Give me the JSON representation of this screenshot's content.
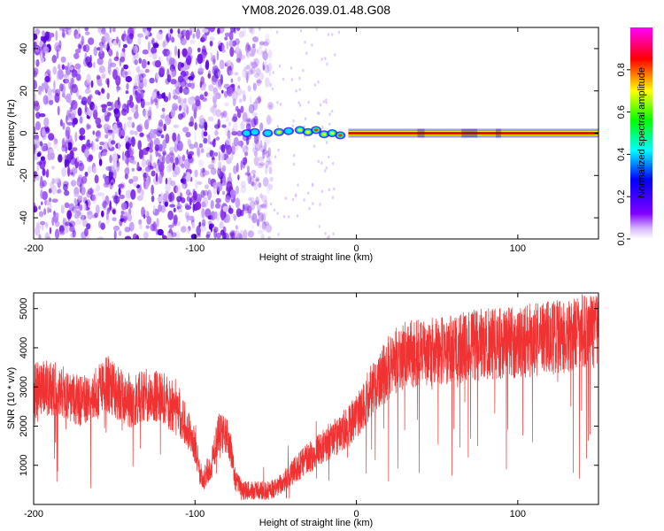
{
  "title": "YM08.2026.039.01.48.G08",
  "chart_data": [
    {
      "type": "heatmap",
      "name": "spectrogram",
      "xlabel": "Height of straight line (km)",
      "ylabel": "Frequency (Hz)",
      "xlim": [
        -200,
        150
      ],
      "ylim": [
        -50,
        50
      ],
      "x_ticks": [
        -200,
        -100,
        0,
        100
      ],
      "y_ticks": [
        -40,
        -20,
        0,
        20,
        40
      ],
      "x_tick_labels": [
        "-200",
        "-100",
        "0",
        "100"
      ],
      "y_tick_labels": [
        "-40",
        "-20",
        "0",
        "20",
        "40"
      ],
      "colorbar": {
        "label": "Normalized spectral amplitude",
        "range": [
          0,
          1
        ],
        "ticks": [
          0.0,
          0.2,
          0.4,
          0.6,
          0.8
        ],
        "tick_labels": [
          "0.0",
          "0.2",
          "0.4",
          "0.6",
          "0.8"
        ],
        "colormap": [
          "#ffffff",
          "#8000ff",
          "#0000ff",
          "#00ffff",
          "#00ff00",
          "#ffff00",
          "#ff0000",
          "#ff00ff"
        ]
      },
      "carrier_line": {
        "frequency_hz": 0,
        "x_start": -5,
        "x_end": 150,
        "amplitude": 1.0,
        "color": "#ff0000"
      },
      "noise_region": {
        "x_start": -200,
        "x_end": -57,
        "freq_range": [
          -50,
          50
        ],
        "amplitude_range": [
          0.05,
          0.35
        ],
        "color": "#7b1fe0"
      },
      "transition_blobs": [
        {
          "x": -68,
          "freq": 0,
          "amplitude": 0.45
        },
        {
          "x": -63,
          "freq": 0.5,
          "amplitude": 0.55
        },
        {
          "x": -55,
          "freq": 0,
          "amplitude": 0.5
        },
        {
          "x": -48,
          "freq": 0.5,
          "amplitude": 0.7
        },
        {
          "x": -42,
          "freq": 1,
          "amplitude": 0.6
        },
        {
          "x": -35,
          "freq": 1.5,
          "amplitude": 0.75
        },
        {
          "x": -30,
          "freq": 0.5,
          "amplitude": 0.7
        },
        {
          "x": -25,
          "freq": 1.5,
          "amplitude": 0.8
        },
        {
          "x": -20,
          "freq": -0.5,
          "amplitude": 0.7
        },
        {
          "x": -15,
          "freq": 0,
          "amplitude": 0.75
        },
        {
          "x": -10,
          "freq": -1,
          "amplitude": 0.8
        }
      ]
    },
    {
      "type": "line",
      "name": "snr",
      "xlabel": "Height of straight line (km)",
      "ylabel": "SNR (10 * v/v)",
      "xlim": [
        -200,
        150
      ],
      "ylim": [
        0,
        5400
      ],
      "x_ticks": [
        -200,
        -100,
        0,
        100
      ],
      "y_ticks": [
        1000,
        2000,
        3000,
        4000,
        5000
      ],
      "x_tick_labels": [
        "-200",
        "-100",
        "0",
        "100"
      ],
      "y_tick_labels": [
        "1000",
        "2000",
        "3000",
        "4000",
        "5000"
      ],
      "series": [
        {
          "color": "#f03232",
          "x": [
            -200,
            -190,
            -180,
            -170,
            -160,
            -155,
            -150,
            -140,
            -130,
            -120,
            -115,
            -110,
            -105,
            -100,
            -97,
            -95,
            -92,
            -90,
            -85,
            -80,
            -77,
            -75,
            -70,
            -65,
            -60,
            -55,
            -50,
            -45,
            -40,
            -35,
            -30,
            -25,
            -20,
            -15,
            -10,
            -5,
            0,
            5,
            10,
            15,
            20,
            25,
            30,
            40,
            50,
            60,
            70,
            80,
            90,
            100,
            110,
            120,
            130,
            140,
            150
          ],
          "y": [
            2900,
            3000,
            2800,
            2600,
            2900,
            3100,
            2900,
            2600,
            2800,
            2750,
            2500,
            2300,
            2000,
            1500,
            800,
            600,
            900,
            1000,
            1900,
            1700,
            1300,
            600,
            350,
            350,
            350,
            350,
            400,
            600,
            800,
            1000,
            1200,
            1300,
            1500,
            1700,
            1800,
            2000,
            2200,
            2600,
            3000,
            3200,
            3500,
            3700,
            3800,
            3900,
            3900,
            3950,
            4050,
            4100,
            4100,
            4150,
            4200,
            4250,
            4300,
            4400,
            4450
          ]
        }
      ]
    }
  ]
}
